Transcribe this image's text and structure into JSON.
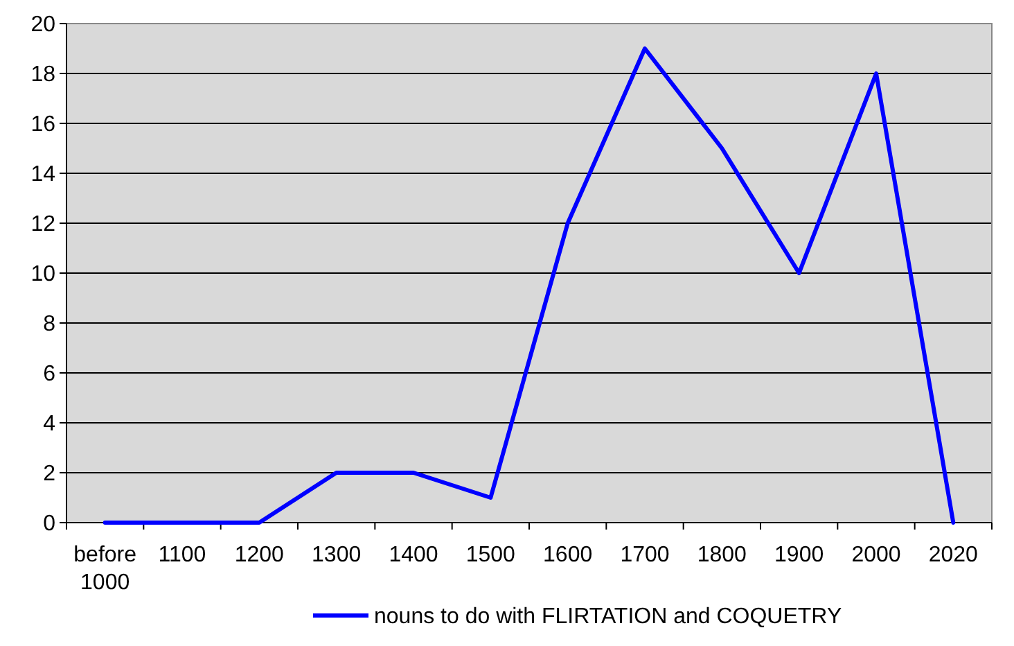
{
  "chart_data": {
    "type": "line",
    "categories": [
      "before 1000",
      "1100",
      "1200",
      "1300",
      "1400",
      "1500",
      "1600",
      "1700",
      "1800",
      "1900",
      "2000",
      "2020"
    ],
    "series": [
      {
        "name": "nouns to do with FLIRTATION and COQUETRY",
        "color": "#0000ff",
        "values": [
          0,
          0,
          0,
          2,
          2,
          1,
          12,
          19,
          15,
          10,
          18,
          0
        ]
      }
    ],
    "ylim": [
      0,
      20
    ],
    "yticks": [
      0,
      2,
      4,
      6,
      8,
      10,
      12,
      14,
      16,
      18,
      20
    ],
    "grid": "y",
    "legend": "bottom",
    "marker": "none",
    "line_style": "solid"
  }
}
